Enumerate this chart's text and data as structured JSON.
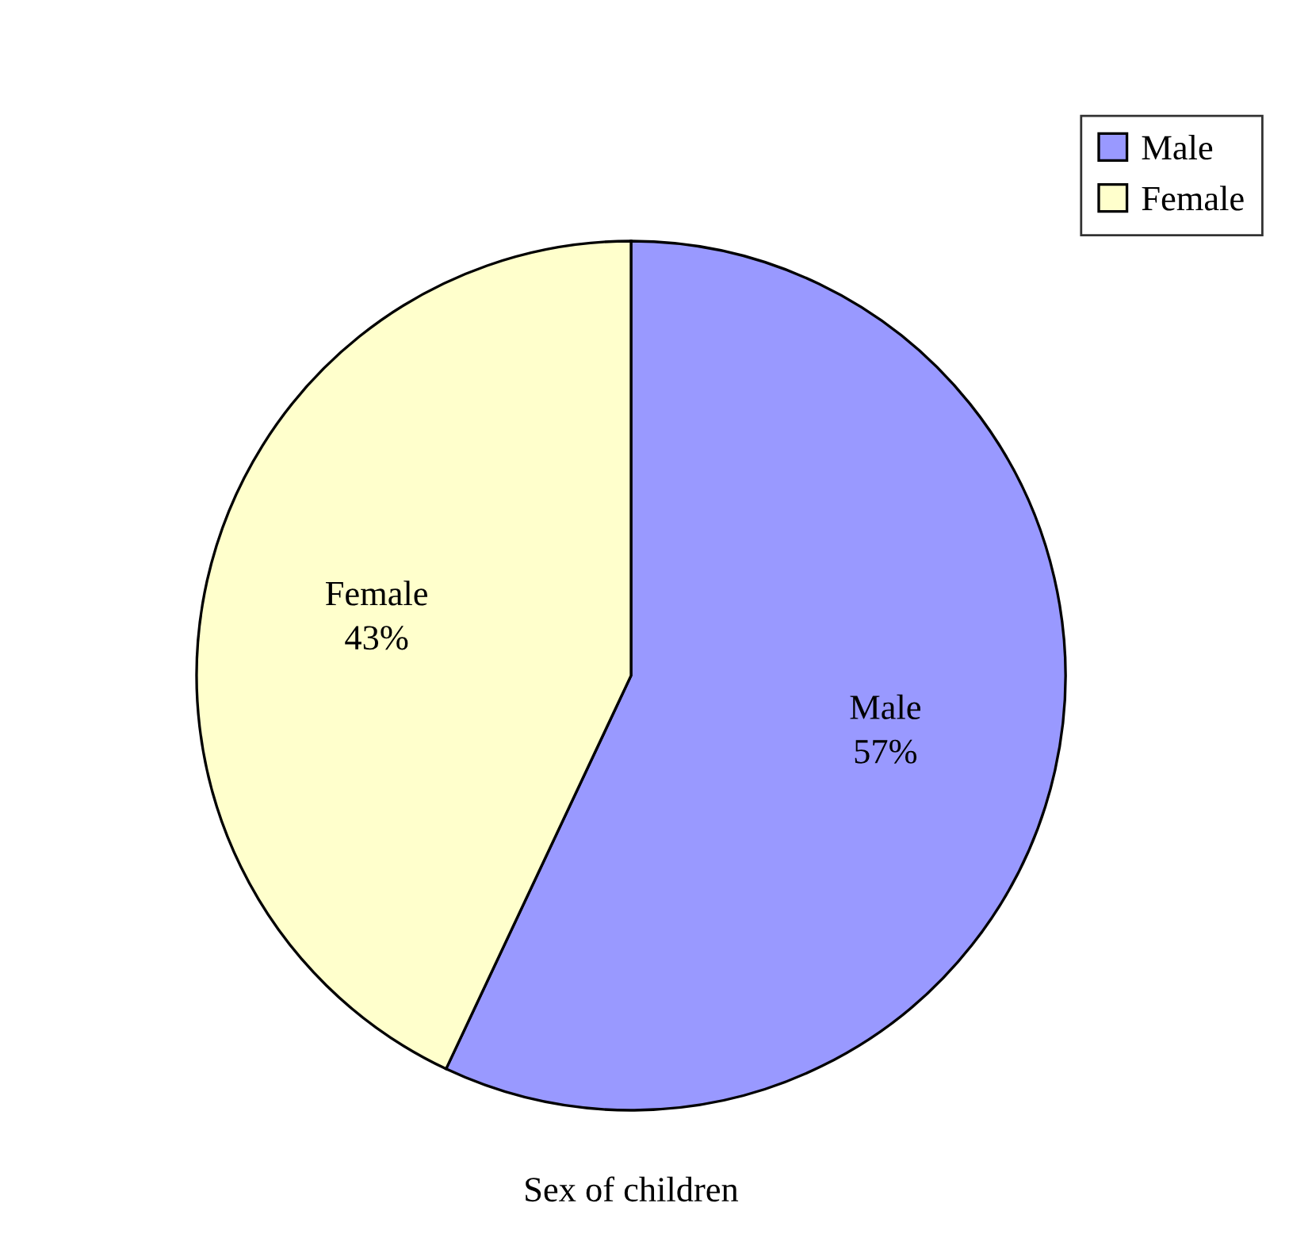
{
  "chart_data": {
    "type": "pie",
    "title": "Sex of children",
    "categories": [
      "Male",
      "Female"
    ],
    "values": [
      57,
      43
    ],
    "colors": [
      "#9999ff",
      "#ffffcc"
    ],
    "value_labels": [
      "57%",
      "43%"
    ],
    "legend": "top right"
  }
}
